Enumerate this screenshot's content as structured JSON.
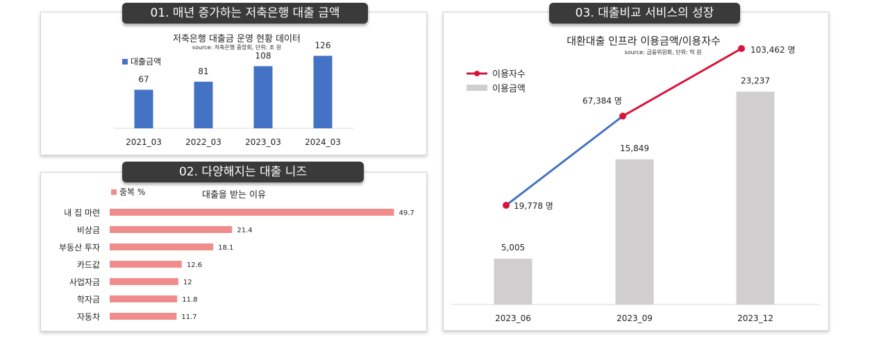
{
  "panel1": {
    "header": "01. 매년 증가하는 저축은행 대출 금액",
    "chart_data": {
      "type": "bar",
      "title": "저축은행 대출금 운영 현황 데이터",
      "subtitle": "source: 저축은행 중앙회, 단위: 조 원",
      "categories": [
        "2021_03",
        "2022_03",
        "2023_03",
        "2024_03"
      ],
      "series": [
        {
          "name": "대출금액",
          "values": [
            67,
            81,
            108,
            126
          ]
        }
      ],
      "ylim": [
        0,
        135
      ],
      "legend": "top-left",
      "grid": false,
      "colors": {
        "bar": "#4472c4"
      }
    }
  },
  "panel2": {
    "header": "02. 다양해지는 대출 니즈",
    "chart_data": {
      "type": "bar",
      "orientation": "horizontal",
      "title": "대출을 받는 이유",
      "categories": [
        "내 집 마련",
        "비상금",
        "부동산 투자",
        "카드값",
        "사업자금",
        "학자금",
        "자동차"
      ],
      "series": [
        {
          "name": "중복 %",
          "values": [
            49.7,
            21.4,
            18.1,
            12.6,
            12,
            11.8,
            11.7
          ]
        }
      ],
      "value_labels": [
        "49.7",
        "21.4",
        "18.1",
        "12.6",
        "12",
        "11.8",
        "11.7"
      ],
      "xlim": [
        0,
        50
      ],
      "legend": "top-left",
      "grid": false,
      "colors": {
        "bar": "#f08c8c"
      }
    }
  },
  "panel3": {
    "header": "03. 대출비교 서비스의 성장",
    "chart_data": {
      "type": "bar+line",
      "title": "대환대출 인프라 이용금액/이용자수",
      "subtitle": "source: 금융위원회, 단위: 억 원",
      "categories": [
        "2023_06",
        "2023_09",
        "2023_12"
      ],
      "series": [
        {
          "name": "이용금액",
          "type": "bar",
          "values": [
            5005,
            15849,
            23237
          ],
          "labels": [
            "5,005",
            "15,849",
            "23,237"
          ]
        },
        {
          "name": "이용자수",
          "type": "line",
          "values": [
            19778,
            67384,
            103462
          ],
          "labels": [
            "19,778 명",
            "67,384 명",
            "103,462 명"
          ]
        }
      ],
      "bar_ylim": [
        0,
        25000
      ],
      "line_ylim": [
        0,
        120000
      ],
      "legend": "top-left",
      "grid": false,
      "colors": {
        "bar": "#d0cece",
        "line": "#d9133a",
        "line_segment_1": "#4472c4",
        "marker": "#d9133a"
      }
    }
  }
}
